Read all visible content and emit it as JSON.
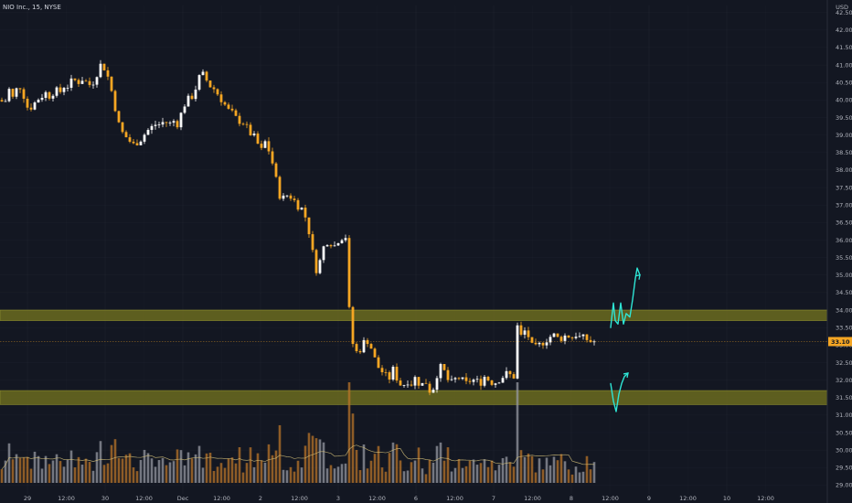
{
  "header": {
    "symbol_title": "NIO Inc., 15, NYSE",
    "currency": "USD"
  },
  "colors": {
    "background": "#131722",
    "up_candle": "#f8f8f8",
    "down_candle": "#f5a623",
    "zone_fill": "#6b6b1f",
    "zone_stroke": "#a8a832",
    "drawing": "#2ee6d6",
    "volume_up": "#9598a1",
    "volume_down": "#b8742a",
    "volume_ma": "#d6c27a",
    "grid": "#2a2e39",
    "axis_text": "#b2b5be",
    "last_price_badge": "#f5a623"
  },
  "chart_data": {
    "type": "candlestick",
    "title": "NIO Inc., 15, NYSE",
    "ylabel": "USD",
    "ylim": [
      28.75,
      42.7
    ],
    "y_ticks": [
      "42.50",
      "42.00",
      "41.50",
      "41.00",
      "40.50",
      "40.00",
      "39.50",
      "39.00",
      "38.50",
      "38.00",
      "37.50",
      "37.00",
      "36.50",
      "36.00",
      "35.50",
      "35.00",
      "34.50",
      "34.00",
      "33.50",
      "33.00",
      "32.50",
      "32.00",
      "31.50",
      "31.00",
      "30.50",
      "30.00",
      "29.50",
      "29.00"
    ],
    "x_ticks": [
      "29",
      "12:00",
      "30",
      "12:00",
      "Dec",
      "12:00",
      "2",
      "12:00",
      "3",
      "12:00",
      "6",
      "12:00",
      "7",
      "12:00",
      "8",
      "12:00",
      "9",
      "12:00",
      "10",
      "12:00"
    ],
    "last_price": "33.10",
    "zones": [
      {
        "low": 33.7,
        "high": 34.0
      },
      {
        "low": 31.3,
        "high": 31.7
      }
    ],
    "price_path": [
      [
        0,
        40.0
      ],
      [
        5,
        39.9
      ],
      [
        10,
        40.3
      ],
      [
        15,
        40.0
      ],
      [
        20,
        40.5
      ],
      [
        25,
        40.2
      ],
      [
        30,
        39.8
      ],
      [
        35,
        39.8
      ],
      [
        40,
        40.0
      ],
      [
        45,
        40.1
      ],
      [
        50,
        40.2
      ],
      [
        55,
        40.1
      ],
      [
        60,
        40.3
      ],
      [
        65,
        40.2
      ],
      [
        70,
        40.4
      ],
      [
        75,
        40.4
      ],
      [
        80,
        40.6
      ],
      [
        85,
        40.5
      ],
      [
        90,
        40.6
      ],
      [
        95,
        40.5
      ],
      [
        100,
        40.4
      ],
      [
        105,
        40.7
      ],
      [
        110,
        41.0
      ],
      [
        115,
        40.9
      ],
      [
        120,
        40.5
      ],
      [
        125,
        39.9
      ],
      [
        130,
        39.3
      ],
      [
        135,
        39.0
      ],
      [
        140,
        38.9
      ],
      [
        145,
        38.7
      ],
      [
        150,
        38.8
      ],
      [
        155,
        38.9
      ],
      [
        160,
        39.1
      ],
      [
        165,
        39.2
      ],
      [
        170,
        39.3
      ],
      [
        175,
        39.3
      ],
      [
        180,
        39.4
      ],
      [
        185,
        39.3
      ],
      [
        190,
        39.4
      ],
      [
        195,
        39.3
      ],
      [
        200,
        39.8
      ],
      [
        205,
        40.0
      ],
      [
        210,
        40.1
      ],
      [
        215,
        40.4
      ],
      [
        220,
        40.8
      ],
      [
        225,
        40.6
      ],
      [
        230,
        40.4
      ],
      [
        235,
        40.3
      ],
      [
        240,
        40.1
      ],
      [
        245,
        39.9
      ],
      [
        250,
        39.7
      ],
      [
        255,
        39.6
      ],
      [
        260,
        39.4
      ],
      [
        265,
        39.4
      ],
      [
        270,
        39.2
      ],
      [
        275,
        39.0
      ],
      [
        280,
        38.9
      ],
      [
        285,
        38.5
      ],
      [
        290,
        38.8
      ],
      [
        295,
        38.5
      ],
      [
        300,
        38.0
      ],
      [
        305,
        37.3
      ],
      [
        310,
        37.2
      ],
      [
        315,
        37.3
      ],
      [
        320,
        37.2
      ],
      [
        325,
        37.0
      ],
      [
        330,
        36.9
      ],
      [
        335,
        36.6
      ],
      [
        340,
        36.0
      ],
      [
        345,
        35.1
      ],
      [
        350,
        35.4
      ],
      [
        355,
        35.9
      ],
      [
        360,
        36.0
      ],
      [
        365,
        35.8
      ],
      [
        370,
        36.0
      ],
      [
        375,
        36.1
      ],
      [
        378,
        36.1
      ],
      [
        382,
        34.0
      ],
      [
        385,
        33.1
      ],
      [
        390,
        32.8
      ],
      [
        395,
        32.9
      ],
      [
        400,
        33.2
      ],
      [
        405,
        33.0
      ],
      [
        410,
        32.6
      ],
      [
        415,
        32.3
      ],
      [
        420,
        32.2
      ],
      [
        425,
        32.0
      ],
      [
        430,
        32.3
      ],
      [
        435,
        32.0
      ],
      [
        440,
        31.8
      ],
      [
        445,
        32.0
      ],
      [
        450,
        31.9
      ],
      [
        455,
        32.1
      ],
      [
        460,
        31.8
      ],
      [
        465,
        32.0
      ],
      [
        470,
        31.7
      ],
      [
        475,
        31.8
      ],
      [
        480,
        32.4
      ],
      [
        485,
        32.3
      ],
      [
        490,
        32.0
      ],
      [
        495,
        31.9
      ],
      [
        500,
        32.1
      ],
      [
        505,
        32.0
      ],
      [
        510,
        31.9
      ],
      [
        515,
        32.0
      ],
      [
        520,
        32.0
      ],
      [
        525,
        31.9
      ],
      [
        530,
        32.1
      ],
      [
        535,
        32.0
      ],
      [
        540,
        31.9
      ],
      [
        545,
        32.0
      ],
      [
        550,
        32.1
      ],
      [
        555,
        32.2
      ],
      [
        560,
        32.1
      ],
      [
        563,
        32.1
      ],
      [
        565,
        33.7
      ],
      [
        568,
        33.2
      ],
      [
        572,
        33.3
      ],
      [
        576,
        33.5
      ],
      [
        580,
        33.0
      ],
      [
        585,
        32.9
      ],
      [
        590,
        33.0
      ],
      [
        595,
        33.1
      ],
      [
        600,
        33.2
      ],
      [
        605,
        33.3
      ],
      [
        610,
        33.2
      ],
      [
        615,
        33.2
      ],
      [
        620,
        33.3
      ],
      [
        625,
        33.2
      ],
      [
        630,
        33.3
      ],
      [
        635,
        33.2
      ],
      [
        640,
        33.2
      ],
      [
        645,
        33.1
      ],
      [
        650,
        33.1
      ]
    ],
    "annotations": [
      {
        "type": "hand-drawn-arrow",
        "direction": "up",
        "points": [
          [
            668,
            33.5
          ],
          [
            671,
            34.2
          ],
          [
            673,
            33.7
          ],
          [
            676,
            33.6
          ],
          [
            679,
            34.2
          ],
          [
            682,
            33.6
          ],
          [
            685,
            33.9
          ],
          [
            689,
            33.8
          ],
          [
            692,
            34.3
          ],
          [
            695,
            34.9
          ],
          [
            697,
            35.2
          ],
          [
            700,
            35.0
          ]
        ]
      },
      {
        "type": "hand-drawn-arrow",
        "direction": "up",
        "points": [
          [
            668,
            31.9
          ],
          [
            671,
            31.4
          ],
          [
            674,
            31.1
          ],
          [
            677,
            31.6
          ],
          [
            680,
            31.9
          ],
          [
            683,
            32.1
          ],
          [
            687,
            32.2
          ]
        ]
      }
    ]
  }
}
